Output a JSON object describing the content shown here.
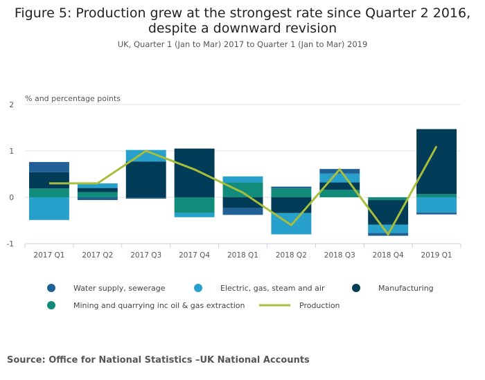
{
  "title": "Figure 5: Production grew at the strongest rate since Quarter 2 2016, despite a downward revision",
  "subtitle": "UK, Quarter 1 (Jan to Mar) 2017 to Quarter 1 (Jan to Mar) 2019",
  "source": "Source: Office for National Statistics –UK National Accounts",
  "chart_data": {
    "type": "bar",
    "stacked": true,
    "ylabel": "% and percentage points",
    "ylim": [
      -1,
      2
    ],
    "yticks": [
      -1,
      0,
      1,
      2
    ],
    "grid": true,
    "legend_position": "bottom",
    "categories": [
      "2017 Q1",
      "2017 Q2",
      "2017 Q3",
      "2017 Q4",
      "2018 Q1",
      "2018 Q2",
      "2018 Q3",
      "2018 Q4",
      "2019 Q1"
    ],
    "series": [
      {
        "name": "Mining and quarrying inc oil & gas extraction",
        "type": "bar",
        "color": "#118c7b",
        "values": [
          0.19,
          0.11,
          0.0,
          -0.34,
          0.32,
          0.19,
          0.16,
          -0.06,
          0.07
        ]
      },
      {
        "name": "Manufacturing",
        "type": "bar",
        "color": "#003c57",
        "values": [
          0.35,
          0.09,
          0.77,
          1.05,
          -0.23,
          -0.34,
          0.16,
          -0.53,
          1.4
        ]
      },
      {
        "name": "Electric, gas, steam and air",
        "type": "bar",
        "color": "#27a0cc",
        "values": [
          -0.49,
          0.1,
          0.25,
          -0.09,
          0.13,
          -0.46,
          0.19,
          -0.18,
          -0.33
        ]
      },
      {
        "name": "Water supply, sewerage",
        "type": "bar",
        "color": "#206095",
        "values": [
          0.22,
          -0.06,
          -0.03,
          0.0,
          -0.15,
          0.04,
          0.1,
          -0.06,
          -0.04
        ]
      },
      {
        "name": "Production",
        "type": "line",
        "color": "#a8bd3a",
        "values": [
          0.3,
          0.3,
          1.0,
          0.6,
          0.1,
          -0.6,
          0.6,
          -0.8,
          1.1
        ]
      }
    ],
    "legend_order": [
      "Water supply, sewerage",
      "Electric, gas, steam and air",
      "Manufacturing",
      "Mining and quarrying inc oil & gas extraction",
      "Production"
    ]
  }
}
